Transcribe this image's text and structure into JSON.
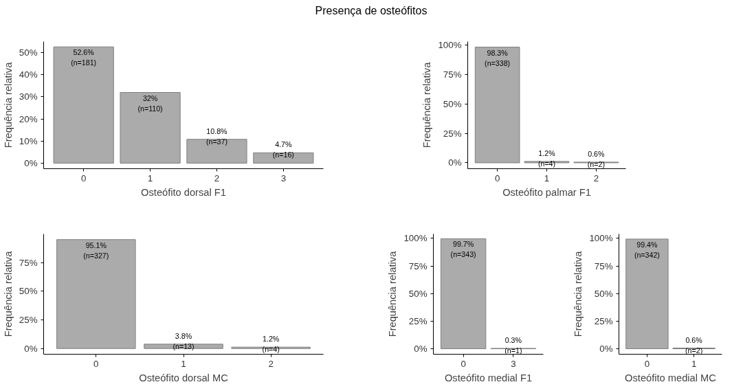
{
  "chart_data": [
    {
      "type": "bar",
      "title": "Presença de osteófitos",
      "xlabel": "Osteófito dorsal F1",
      "ylabel": "Frequência relativa",
      "categories": [
        "0",
        "1",
        "2",
        "3"
      ],
      "values": [
        52.6,
        32,
        10.8,
        4.7
      ],
      "color": "#ababab",
      "value_labels": [
        "52.6%\n(n=181)",
        "32%\n(n=110)",
        "10.8%\n(n=37)",
        "4.7%\n(n=16)"
      ],
      "ylim": [
        -2.5,
        55
      ],
      "yticks": [
        {
          "value": 0,
          "label": "0%"
        },
        {
          "value": 10,
          "label": "10%"
        },
        {
          "value": 20,
          "label": "20%"
        },
        {
          "value": 30,
          "label": "30%"
        },
        {
          "value": 40,
          "label": "40%"
        },
        {
          "value": 50,
          "label": "50%"
        }
      ],
      "grid": false
    },
    {
      "type": "bar",
      "xlabel": "Osteófito palmar F1",
      "ylabel": "Frequência relativa",
      "categories": [
        "0",
        "1",
        "2"
      ],
      "values": [
        98.3,
        1.2,
        0.6
      ],
      "color": "#ababab",
      "value_labels": [
        "98.3%\n(n=338)",
        "1.2%\n(n=4)",
        "0.6%\n(n=2)"
      ],
      "ylim": [
        -5,
        103
      ],
      "yticks": [
        {
          "value": 0,
          "label": "0%"
        },
        {
          "value": 25,
          "label": "25%"
        },
        {
          "value": 50,
          "label": "50%"
        },
        {
          "value": 75,
          "label": "75%"
        },
        {
          "value": 100,
          "label": "100%"
        }
      ],
      "grid": false
    },
    {
      "type": "bar",
      "xlabel": "Osteófito dorsal MC",
      "ylabel": "Frequência relativa",
      "categories": [
        "0",
        "1",
        "2"
      ],
      "values": [
        95.1,
        3.8,
        1.2
      ],
      "color": "#ababab",
      "value_labels": [
        "95.1%\n(n=327)",
        "3.8%\n(n=13)",
        "1.2%\n(n=4)"
      ],
      "ylim": [
        -5,
        100
      ],
      "yticks": [
        {
          "value": 0,
          "label": "0%"
        },
        {
          "value": 25,
          "label": "25%"
        },
        {
          "value": 50,
          "label": "50%"
        },
        {
          "value": 75,
          "label": "75%"
        }
      ],
      "grid": false
    },
    {
      "type": "bar",
      "xlabel": "Osteófito medial F1",
      "ylabel": "Frequência relativa",
      "categories": [
        "0",
        "3"
      ],
      "values": [
        99.7,
        0.3
      ],
      "color": "#ababab",
      "value_labels": [
        "99.7%\n(n=343)",
        "0.3%\n(n=1)"
      ],
      "ylim": [
        -5,
        104
      ],
      "yticks": [
        {
          "value": 0,
          "label": "0%"
        },
        {
          "value": 25,
          "label": "25%"
        },
        {
          "value": 50,
          "label": "50%"
        },
        {
          "value": 75,
          "label": "75%"
        },
        {
          "value": 100,
          "label": "100%"
        }
      ],
      "grid": false
    },
    {
      "type": "bar",
      "xlabel": "Osteófito medial MC",
      "ylabel": "Frequência relativa",
      "categories": [
        "0",
        "1"
      ],
      "values": [
        99.4,
        0.6
      ],
      "color": "#ababab",
      "value_labels": [
        "99.4%\n(n=342)",
        "0.6%\n(n=2)"
      ],
      "ylim": [
        -5,
        104
      ],
      "yticks": [
        {
          "value": 0,
          "label": "0%"
        },
        {
          "value": 25,
          "label": "25%"
        },
        {
          "value": 50,
          "label": "50%"
        },
        {
          "value": 75,
          "label": "75%"
        },
        {
          "value": 100,
          "label": "100%"
        }
      ],
      "grid": false
    }
  ]
}
